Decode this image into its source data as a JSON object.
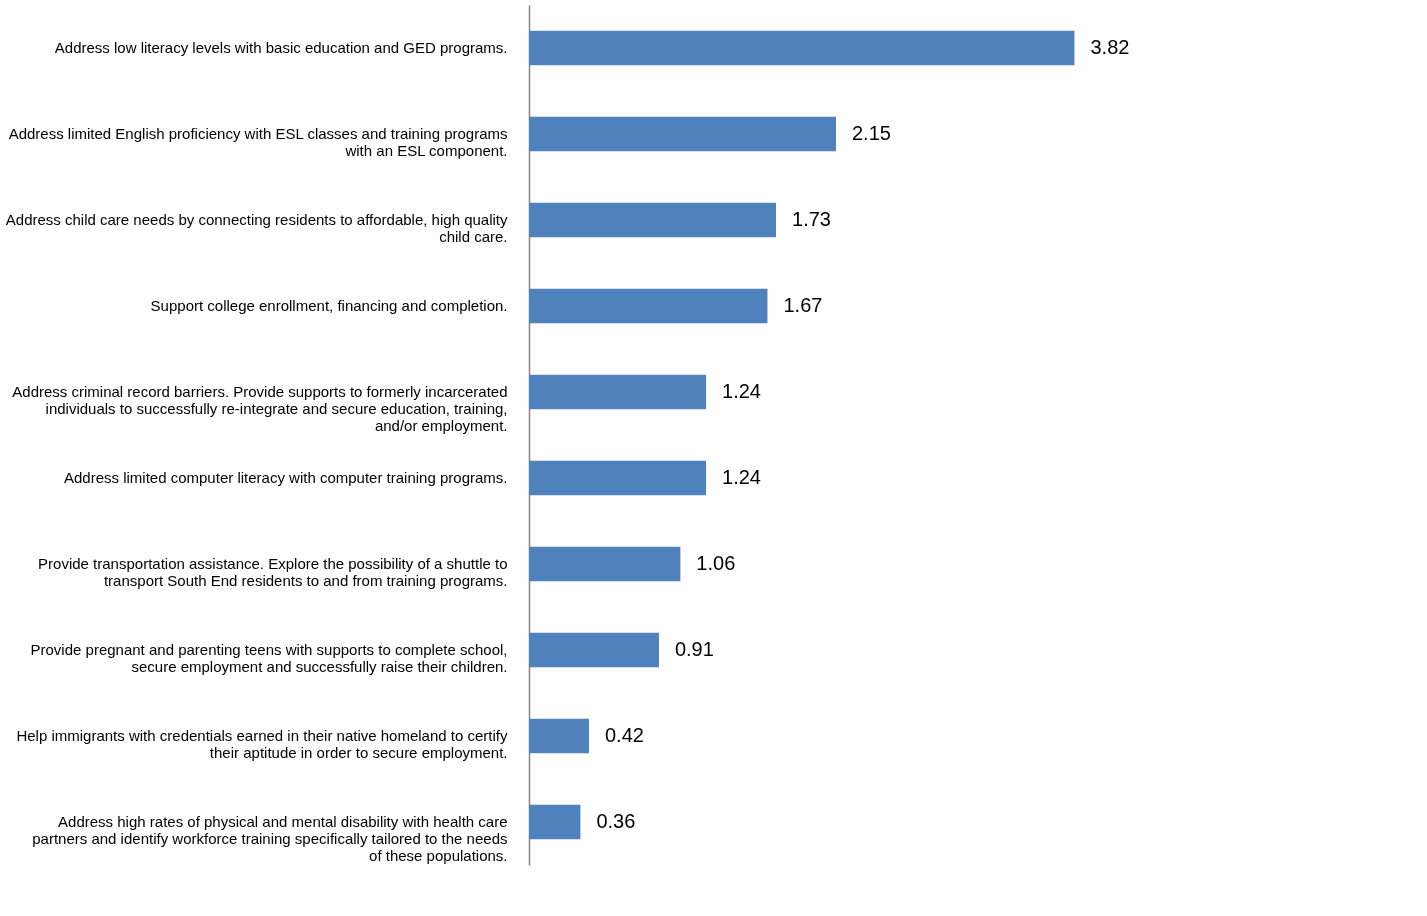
{
  "chart_data": {
    "type": "bar",
    "orientation": "horizontal",
    "data_labels": true,
    "grid": false,
    "categories": [
      "Address low literacy levels with basic education and GED programs.",
      "Address limited English proficiency with ESL classes and training programs with an ESL component.",
      "Address child care needs by connecting residents to affordable, high quality child care.",
      "Support college enrollment, financing and completion.",
      "Address criminal record barriers. Provide supports to formerly incarcerated individuals to successfully re-integrate and secure education, training, and/or employment.",
      "Address limited computer literacy with computer training programs.",
      "Provide transportation assistance. Explore the possibility of a shuttle to transport South End residents to and from training programs.",
      "Provide pregnant and parenting teens with supports to complete school, secure employment and successfully raise their children.",
      "Help immigrants with credentials earned in their native homeland to certify their aptitude in order to secure employment.",
      "Address high rates of physical and mental disability with health care partners and identify workforce training specifically tailored to the needs of these populations."
    ],
    "values": [
      3.82,
      2.15,
      1.73,
      1.67,
      1.24,
      1.24,
      1.06,
      0.91,
      0.42,
      0.36
    ],
    "color": "#4f81bd"
  }
}
